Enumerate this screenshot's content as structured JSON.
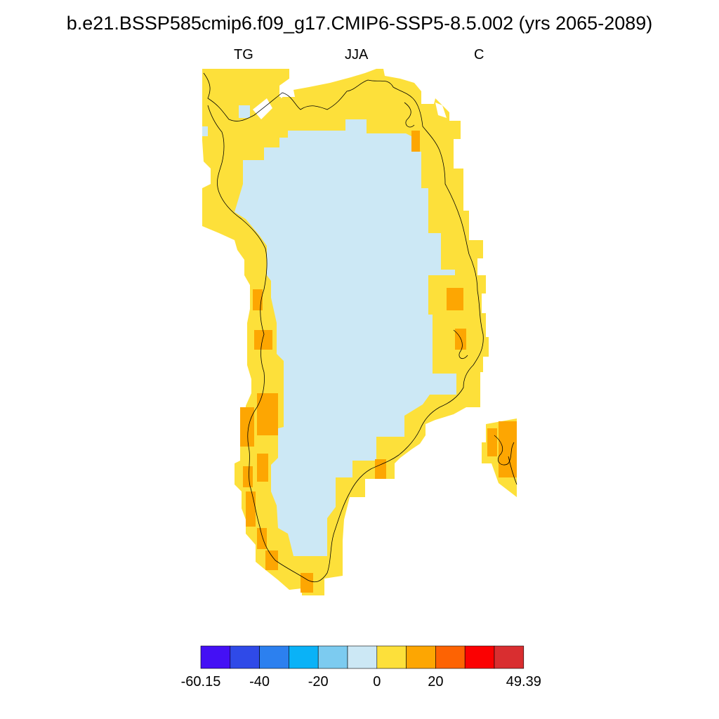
{
  "title": "b.e21.BSSP585cmip6.f09_g17.CMIP6-SSP5-8.5.002 (yrs 2065-2089)",
  "subtitle_left": "TG",
  "subtitle_center": "JJA",
  "subtitle_right": "C",
  "colorbar": {
    "colors": [
      "#4410f5",
      "#2f4ae8",
      "#2c80ef",
      "#0ab2f7",
      "#7ccbf0",
      "#cce8f5",
      "#fde03a",
      "#fda602",
      "#fd6303",
      "#fb0102",
      "#d92e30"
    ],
    "labels": [
      "-60.15",
      "-40",
      "-20",
      "0",
      "20",
      "49.39"
    ],
    "label_bins": [
      0,
      2,
      4,
      6,
      8,
      11
    ]
  },
  "map_colors": {
    "ice": "#cce8f5",
    "coast": "#fde03a",
    "warm": "#fda602",
    "coastline": "#000000"
  }
}
